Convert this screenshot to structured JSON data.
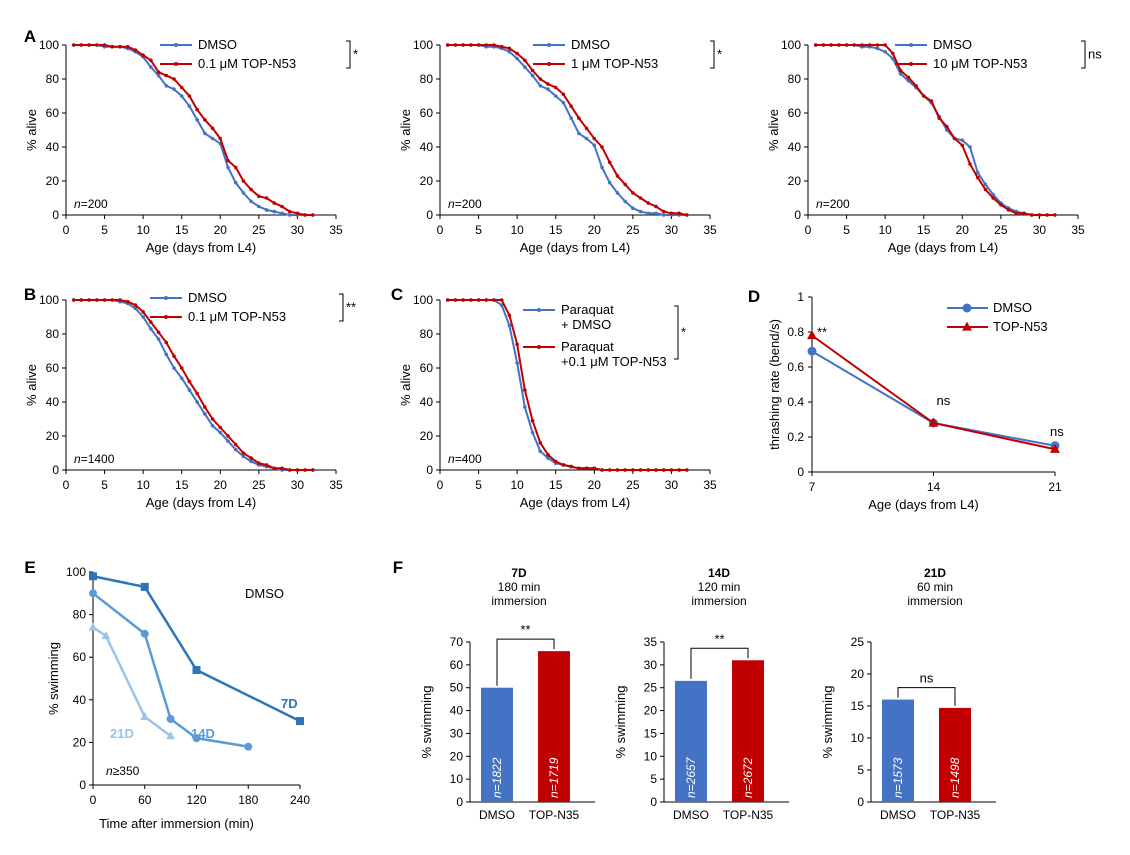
{
  "colors": {
    "dmso": "#4472c4",
    "top": "#c00000",
    "bar_dmso": "#4472c4",
    "bar_top": "#c00000",
    "e7": "#2e75b6",
    "e14": "#5b9bd5",
    "e21": "#9dc3e6"
  },
  "chart_data": [
    {
      "id": "A1",
      "type": "line",
      "panel_label": "A",
      "xlabel": "Age (days from L4)",
      "ylabel": "% alive",
      "xlim": [
        0,
        35
      ],
      "ylim": [
        0,
        100
      ],
      "xticks": [
        "0",
        "5",
        "10",
        "15",
        "20",
        "25",
        "30",
        "35"
      ],
      "yticks": [
        "0",
        "20",
        "40",
        "60",
        "80",
        "100"
      ],
      "n_label": "=200",
      "sig": "*",
      "legend_position": "top-right",
      "series": [
        {
          "name": "DMSO",
          "color_key": "dmso",
          "x": [
            1,
            2,
            3,
            4,
            5,
            6,
            7,
            8,
            9,
            10,
            11,
            12,
            13,
            14,
            15,
            16,
            17,
            18,
            19,
            20,
            21,
            22,
            23,
            24,
            25,
            26,
            27,
            28,
            29,
            30,
            31,
            32
          ],
          "y": [
            100,
            100,
            100,
            100,
            99,
            99,
            99,
            98,
            96,
            93,
            87,
            82,
            76,
            74,
            70,
            64,
            56,
            48,
            45,
            42,
            28,
            19,
            13,
            8,
            5,
            3,
            2,
            1,
            0,
            0,
            0,
            0
          ]
        },
        {
          "name": "0.1  μM TOP-N53",
          "color_key": "top",
          "x": [
            1,
            2,
            3,
            4,
            5,
            6,
            7,
            8,
            9,
            10,
            11,
            12,
            13,
            14,
            15,
            16,
            17,
            18,
            19,
            20,
            21,
            22,
            23,
            24,
            25,
            26,
            27,
            28,
            29,
            30,
            31,
            32
          ],
          "y": [
            100,
            100,
            100,
            100,
            100,
            99,
            99,
            99,
            97,
            94,
            91,
            84,
            82,
            80,
            75,
            70,
            62,
            56,
            51,
            45,
            32,
            28,
            20,
            15,
            11,
            10,
            7,
            5,
            2,
            1,
            0,
            0
          ]
        }
      ]
    },
    {
      "id": "A2",
      "type": "line",
      "panel_label": "",
      "xlabel": "Age (days from L4)",
      "ylabel": "% alive",
      "xlim": [
        0,
        35
      ],
      "ylim": [
        0,
        100
      ],
      "xticks": [
        "0",
        "5",
        "10",
        "15",
        "20",
        "25",
        "30",
        "35"
      ],
      "yticks": [
        "0",
        "20",
        "40",
        "60",
        "80",
        "100"
      ],
      "n_label": "=200",
      "sig": "*",
      "legend_position": "top-right",
      "series": [
        {
          "name": "DMSO",
          "color_key": "dmso",
          "x": [
            1,
            2,
            3,
            4,
            5,
            6,
            7,
            8,
            9,
            10,
            11,
            12,
            13,
            14,
            15,
            16,
            17,
            18,
            19,
            20,
            21,
            22,
            23,
            24,
            25,
            26,
            27,
            28,
            29,
            30,
            31,
            32
          ],
          "y": [
            100,
            100,
            100,
            100,
            100,
            99,
            99,
            98,
            96,
            92,
            87,
            82,
            76,
            74,
            70,
            66,
            57,
            48,
            45,
            41,
            28,
            19,
            13,
            8,
            4,
            2,
            1,
            1,
            0,
            0,
            0,
            0
          ]
        },
        {
          "name": "1  μM TOP-N53",
          "color_key": "top",
          "x": [
            1,
            2,
            3,
            4,
            5,
            6,
            7,
            8,
            9,
            10,
            11,
            12,
            13,
            14,
            15,
            16,
            17,
            18,
            19,
            20,
            21,
            22,
            23,
            24,
            25,
            26,
            27,
            28,
            29,
            30,
            31,
            32
          ],
          "y": [
            100,
            100,
            100,
            100,
            100,
            100,
            100,
            99,
            98,
            95,
            91,
            85,
            80,
            77,
            75,
            71,
            64,
            57,
            51,
            45,
            40,
            31,
            23,
            18,
            13,
            10,
            7,
            5,
            2,
            1,
            1,
            0
          ]
        }
      ]
    },
    {
      "id": "A3",
      "type": "line",
      "panel_label": "",
      "xlabel": "Age (days from L4)",
      "ylabel": "% alive",
      "xlim": [
        0,
        35
      ],
      "ylim": [
        0,
        100
      ],
      "xticks": [
        "0",
        "5",
        "10",
        "15",
        "20",
        "25",
        "30",
        "35"
      ],
      "yticks": [
        "0",
        "20",
        "40",
        "60",
        "80",
        "100"
      ],
      "n_label": "=200",
      "sig": "ns",
      "legend_position": "top-right",
      "series": [
        {
          "name": "DMSO",
          "color_key": "dmso",
          "x": [
            1,
            2,
            3,
            4,
            5,
            6,
            7,
            8,
            9,
            10,
            11,
            12,
            13,
            14,
            15,
            16,
            17,
            18,
            19,
            20,
            21,
            22,
            23,
            24,
            25,
            26,
            27,
            28,
            29,
            30,
            31,
            32
          ],
          "y": [
            100,
            100,
            100,
            100,
            100,
            100,
            99,
            99,
            98,
            96,
            92,
            83,
            79,
            75,
            70,
            66,
            58,
            50,
            45,
            44,
            40,
            25,
            18,
            12,
            7,
            4,
            2,
            1,
            0,
            0,
            0,
            0
          ]
        },
        {
          "name": "10  μM TOP-N53",
          "color_key": "top",
          "x": [
            1,
            2,
            3,
            4,
            5,
            6,
            7,
            8,
            9,
            10,
            11,
            12,
            13,
            14,
            15,
            16,
            17,
            18,
            19,
            20,
            21,
            22,
            23,
            24,
            25,
            26,
            27,
            28,
            29,
            30,
            31,
            32
          ],
          "y": [
            100,
            100,
            100,
            100,
            100,
            100,
            100,
            100,
            100,
            100,
            95,
            85,
            81,
            76,
            70,
            67,
            57,
            52,
            45,
            41,
            30,
            22,
            15,
            10,
            6,
            3,
            1,
            1,
            0,
            0,
            0,
            0
          ]
        }
      ]
    },
    {
      "id": "B",
      "type": "line",
      "panel_label": "B",
      "xlabel": "Age (days from L4)",
      "ylabel": "% alive",
      "xlim": [
        0,
        35
      ],
      "ylim": [
        0,
        100
      ],
      "xticks": [
        "0",
        "5",
        "10",
        "15",
        "20",
        "25",
        "30",
        "35"
      ],
      "yticks": [
        "0",
        "20",
        "40",
        "60",
        "80",
        "100"
      ],
      "n_label": "=1400",
      "sig": "**",
      "legend_position": "top-right",
      "series": [
        {
          "name": "DMSO",
          "color_key": "dmso",
          "x": [
            1,
            2,
            3,
            4,
            5,
            6,
            7,
            8,
            9,
            10,
            11,
            12,
            13,
            14,
            15,
            16,
            17,
            18,
            19,
            20,
            21,
            22,
            23,
            24,
            25,
            26,
            27,
            28,
            29,
            30,
            31,
            32
          ],
          "y": [
            100,
            100,
            100,
            100,
            100,
            100,
            99,
            98,
            95,
            90,
            83,
            77,
            68,
            60,
            54,
            47,
            40,
            33,
            26,
            22,
            17,
            12,
            8,
            5,
            3,
            2,
            1,
            0,
            0,
            0,
            0,
            0
          ]
        },
        {
          "name": "0.1  μM TOP-N53",
          "color_key": "top",
          "x": [
            1,
            2,
            3,
            4,
            5,
            6,
            7,
            8,
            9,
            10,
            11,
            12,
            13,
            14,
            15,
            16,
            17,
            18,
            19,
            20,
            21,
            22,
            23,
            24,
            25,
            26,
            27,
            28,
            29,
            30,
            31,
            32
          ],
          "y": [
            100,
            100,
            100,
            100,
            100,
            100,
            100,
            99,
            97,
            93,
            87,
            81,
            75,
            67,
            60,
            52,
            45,
            37,
            30,
            25,
            20,
            15,
            10,
            7,
            4,
            3,
            1,
            1,
            0,
            0,
            0,
            0
          ]
        }
      ]
    },
    {
      "id": "C",
      "type": "line",
      "panel_label": "C",
      "xlabel": "Age (days from L4)",
      "ylabel": "% alive",
      "xlim": [
        0,
        35
      ],
      "ylim": [
        0,
        100
      ],
      "xticks": [
        "0",
        "5",
        "10",
        "15",
        "20",
        "25",
        "30",
        "35"
      ],
      "yticks": [
        "0",
        "20",
        "40",
        "60",
        "80",
        "100"
      ],
      "n_label": "=400",
      "sig": "*",
      "legend_position": "top-right",
      "series": [
        {
          "name": "Paraquat\n+ DMSO",
          "color_key": "dmso",
          "x": [
            1,
            2,
            3,
            4,
            5,
            6,
            7,
            8,
            9,
            10,
            11,
            12,
            13,
            14,
            15,
            16,
            17,
            18,
            19,
            20,
            21,
            22,
            23,
            24,
            25,
            26,
            27,
            28,
            29,
            30,
            31,
            32
          ],
          "y": [
            100,
            100,
            100,
            100,
            100,
            100,
            100,
            97,
            85,
            63,
            37,
            22,
            11,
            7,
            4,
            3,
            2,
            1,
            1,
            1,
            0,
            0,
            0,
            0,
            0,
            0,
            0,
            0,
            0,
            0,
            0,
            0
          ]
        },
        {
          "name": "Paraquat\n+0.1  μM TOP-N53",
          "color_key": "top",
          "x": [
            1,
            2,
            3,
            4,
            5,
            6,
            7,
            8,
            9,
            10,
            11,
            12,
            13,
            14,
            15,
            16,
            17,
            18,
            19,
            20,
            21,
            22,
            23,
            24,
            25,
            26,
            27,
            28,
            29,
            30,
            31,
            32
          ],
          "y": [
            100,
            100,
            100,
            100,
            100,
            100,
            100,
            100,
            91,
            74,
            47,
            29,
            16,
            9,
            5,
            3,
            2,
            1,
            1,
            1,
            0,
            0,
            0,
            0,
            0,
            0,
            0,
            0,
            0,
            0,
            0,
            0
          ]
        }
      ]
    },
    {
      "id": "D",
      "type": "line",
      "panel_label": "D",
      "xlabel": "Age (days from L4)",
      "ylabel": "thrashing rate (bend/s)",
      "categories": [
        "7",
        "14",
        "21"
      ],
      "ylim": [
        0,
        1
      ],
      "yticks": [
        "0",
        "0.2",
        "0.4",
        "0.6",
        "0.8",
        "1"
      ],
      "legend_position": "top-right",
      "point_sig": [
        "**",
        "ns",
        "ns"
      ],
      "series": [
        {
          "name": "DMSO",
          "color_key": "dmso",
          "marker": "circle",
          "values": [
            0.69,
            0.28,
            0.15
          ]
        },
        {
          "name": "TOP-N53",
          "color_key": "top",
          "marker": "triangle",
          "values": [
            0.78,
            0.28,
            0.13
          ]
        }
      ]
    },
    {
      "id": "E",
      "type": "line",
      "panel_label": "E",
      "xlabel": "Time after immersion (min)",
      "ylabel": "% swimming",
      "xlim": [
        0,
        240
      ],
      "ylim": [
        0,
        100
      ],
      "xticks": [
        "0",
        "60",
        "120",
        "180",
        "240"
      ],
      "yticks": [
        "0",
        "20",
        "40",
        "60",
        "80",
        "100"
      ],
      "annotation": "DMSO",
      "n_label": "≥350",
      "series": [
        {
          "name": "7D",
          "color_key": "e7",
          "marker": "square",
          "x": [
            0,
            60,
            120,
            240
          ],
          "y": [
            98,
            93,
            54,
            30
          ]
        },
        {
          "name": "14D",
          "color_key": "e14",
          "marker": "circle",
          "x": [
            0,
            60,
            90,
            120,
            180
          ],
          "y": [
            90,
            71,
            31,
            22,
            18
          ]
        },
        {
          "name": "21D",
          "color_key": "e21",
          "marker": "triangle",
          "x": [
            0,
            15,
            60,
            90
          ],
          "y": [
            74,
            70,
            32,
            23
          ]
        }
      ]
    },
    {
      "id": "F1",
      "type": "bar",
      "panel_label": "F",
      "head_bold": "7D",
      "head_lines": [
        "180 min",
        "immersion"
      ],
      "ylabel": "% swimming",
      "ylim": [
        0,
        70
      ],
      "yticks": [
        "0",
        "10",
        "20",
        "30",
        "40",
        "50",
        "60",
        "70"
      ],
      "categories": [
        "DMSO",
        "TOP-N35"
      ],
      "values": [
        50,
        66
      ],
      "n": [
        "=1822",
        "=1719"
      ],
      "sig": "**"
    },
    {
      "id": "F2",
      "type": "bar",
      "panel_label": "",
      "head_bold": "14D",
      "head_lines": [
        "120 min",
        "immersion"
      ],
      "ylabel": "% swimming",
      "ylim": [
        0,
        35
      ],
      "yticks": [
        "0",
        "5",
        "10",
        "15",
        "20",
        "25",
        "30",
        "35"
      ],
      "categories": [
        "DMSO",
        "TOP-N35"
      ],
      "values": [
        26.5,
        31
      ],
      "n": [
        "=2657",
        "=2672"
      ],
      "sig": "**"
    },
    {
      "id": "F3",
      "type": "bar",
      "panel_label": "",
      "head_bold": "21D",
      "head_lines": [
        "60 min",
        "immersion"
      ],
      "ylabel": "% swimming",
      "ylim": [
        0,
        25
      ],
      "yticks": [
        "0",
        "5",
        "10",
        "15",
        "20",
        "25"
      ],
      "categories": [
        "DMSO",
        "TOP-N35"
      ],
      "values": [
        16,
        14.7
      ],
      "n": [
        "=1573",
        "=1498"
      ],
      "sig": "ns"
    }
  ]
}
